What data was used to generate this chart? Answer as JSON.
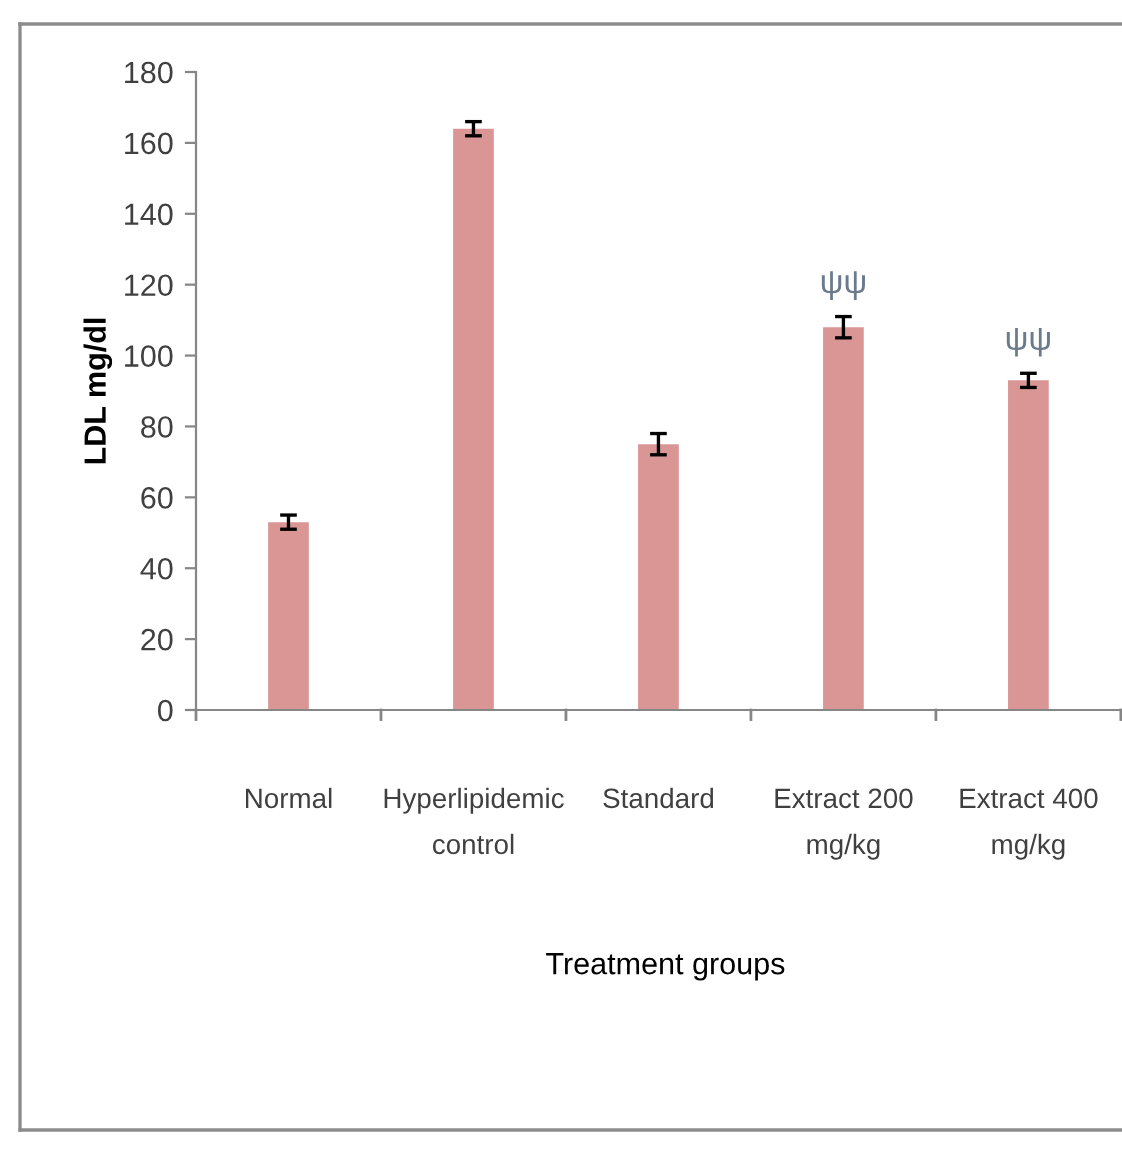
{
  "chart_data": {
    "type": "bar",
    "categories": [
      "Normal",
      "Hyperlipidemic control",
      "Standard",
      "Extract 200 mg/kg",
      "Extract 400 mg/kg"
    ],
    "values": [
      53,
      164,
      75,
      108,
      93
    ],
    "errors": [
      2,
      2,
      3,
      3,
      2
    ],
    "color": "#d99694",
    "ylabel": "LDL mg/dl",
    "xlabel": "Treatment groups",
    "ylim": [
      0,
      180
    ],
    "yticks": [
      0,
      20,
      40,
      60,
      80,
      100,
      120,
      140,
      160,
      180
    ],
    "grid": false,
    "annotations": [
      {
        "text": "ψψ",
        "x": "Extract 200 mg/kg",
        "y": 108
      },
      {
        "text": "ψψ",
        "x": "Extract 400 mg/kg",
        "y": 93
      }
    ]
  }
}
